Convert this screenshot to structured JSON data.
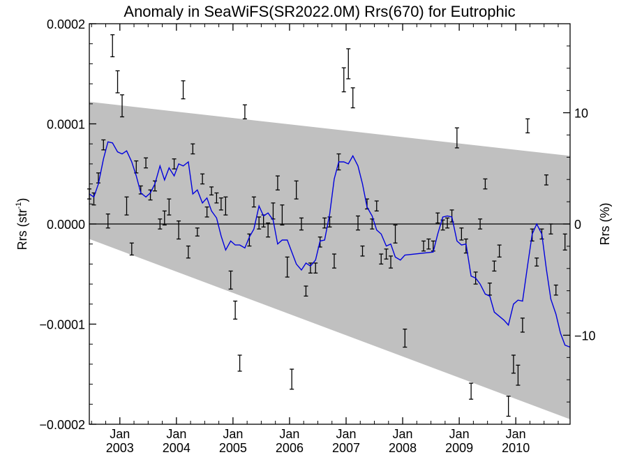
{
  "chart_data": {
    "type": "line",
    "title": "Anomaly in SeaWiFS(SR2022.0M) Rrs(670) for Eutrophic",
    "ylabel": "Rrs (str",
    "ylabel_sup": "-1",
    "ylabel_close": ")",
    "y2label": "Rrs (%)",
    "x_unit": "decimal year",
    "xlim": [
      2002.46,
      2010.96
    ],
    "ylim": [
      -0.0002,
      0.0002
    ],
    "y2lim": [
      -18,
      18
    ],
    "y_ticks": [
      {
        "v": 0.0002,
        "label": "0.0002"
      },
      {
        "v": 0.0001,
        "label": "0.0001"
      },
      {
        "v": 0.0,
        "label": "0.0000"
      },
      {
        "v": -0.0001,
        "label": "−0.0001"
      },
      {
        "v": -0.0002,
        "label": "−0.0002"
      }
    ],
    "y2_ticks": [
      {
        "v": 10,
        "label": "10"
      },
      {
        "v": 0,
        "label": "0"
      },
      {
        "v": -10,
        "label": "−10"
      }
    ],
    "x_ticks": [
      {
        "v": 2003,
        "month": "Jan",
        "year": "2003"
      },
      {
        "v": 2004,
        "month": "Jan",
        "year": "2004"
      },
      {
        "v": 2005,
        "month": "Jan",
        "year": "2005"
      },
      {
        "v": 2006,
        "month": "Jan",
        "year": "2006"
      },
      {
        "v": 2007,
        "month": "Jan",
        "year": "2007"
      },
      {
        "v": 2008,
        "month": "Jan",
        "year": "2008"
      },
      {
        "v": 2009,
        "month": "Jan",
        "year": "2009"
      },
      {
        "v": 2010,
        "month": "Jan",
        "year": "2010"
      }
    ],
    "band": {
      "color": "#c0c0c0",
      "upper": [
        [
          2002.46,
          0.000122
        ],
        [
          2010.96,
          6.8e-05
        ]
      ],
      "lower": [
        [
          2002.46,
          -1.5e-05
        ],
        [
          2010.96,
          -0.000195
        ]
      ]
    },
    "zero_line": true,
    "series": [
      {
        "kind": "smoothed",
        "color": "#0000dd",
        "points": [
          [
            2002.46,
            3e-05
          ],
          [
            2002.54,
            2.7e-05
          ],
          [
            2002.62,
            4e-05
          ],
          [
            2002.71,
            6.5e-05
          ],
          [
            2002.79,
            8.2e-05
          ],
          [
            2002.87,
            8.1e-05
          ],
          [
            2002.96,
            7.2e-05
          ],
          [
            2003.04,
            7e-05
          ],
          [
            2003.12,
            7.3e-05
          ],
          [
            2003.21,
            6.2e-05
          ],
          [
            2003.29,
            4.8e-05
          ],
          [
            2003.37,
            3.1e-05
          ],
          [
            2003.46,
            2.7e-05
          ],
          [
            2003.54,
            3.1e-05
          ],
          [
            2003.62,
            4e-05
          ],
          [
            2003.71,
            5.8e-05
          ],
          [
            2003.79,
            4.4e-05
          ],
          [
            2003.87,
            5.6e-05
          ],
          [
            2003.96,
            4.8e-05
          ],
          [
            2004.04,
            6e-05
          ],
          [
            2004.12,
            5.8e-05
          ],
          [
            2004.21,
            6.2e-05
          ],
          [
            2004.29,
            3e-05
          ],
          [
            2004.37,
            3.4e-05
          ],
          [
            2004.46,
            2.1e-05
          ],
          [
            2004.54,
            2.6e-05
          ],
          [
            2004.62,
            1.3e-05
          ],
          [
            2004.71,
            6e-06
          ],
          [
            2004.79,
            -1.2e-05
          ],
          [
            2004.87,
            -2.6e-05
          ],
          [
            2004.96,
            -1.7e-05
          ],
          [
            2005.04,
            -2.1e-05
          ],
          [
            2005.12,
            -2.1e-05
          ],
          [
            2005.21,
            -2.4e-05
          ],
          [
            2005.29,
            -1.3e-05
          ],
          [
            2005.37,
            -5e-06
          ],
          [
            2005.46,
            1.8e-05
          ],
          [
            2005.54,
            8e-06
          ],
          [
            2005.62,
            1.1e-05
          ],
          [
            2005.71,
            4e-06
          ],
          [
            2005.79,
            -2e-05
          ],
          [
            2005.87,
            -1.6e-05
          ],
          [
            2005.96,
            -1.6e-05
          ],
          [
            2006.04,
            -2.8e-05
          ],
          [
            2006.12,
            -4e-05
          ],
          [
            2006.21,
            -4.6e-05
          ],
          [
            2006.29,
            -3.9e-05
          ],
          [
            2006.37,
            -4.2e-05
          ],
          [
            2006.46,
            -3.6e-05
          ],
          [
            2006.54,
            -1.7e-05
          ],
          [
            2006.62,
            -1.6e-05
          ],
          [
            2006.71,
            1e-05
          ],
          [
            2006.79,
            4.5e-05
          ],
          [
            2006.87,
            6.2e-05
          ],
          [
            2006.96,
            6.2e-05
          ],
          [
            2007.04,
            6e-05
          ],
          [
            2007.12,
            6.8e-05
          ],
          [
            2007.21,
            5.8e-05
          ],
          [
            2007.29,
            4e-05
          ],
          [
            2007.37,
            1.7e-05
          ],
          [
            2007.46,
            8e-06
          ],
          [
            2007.54,
            -6e-06
          ],
          [
            2007.62,
            -1e-05
          ],
          [
            2007.71,
            -2.2e-05
          ],
          [
            2007.79,
            -2e-05
          ],
          [
            2007.87,
            -3.3e-05
          ],
          [
            2007.96,
            -3.6e-05
          ],
          [
            2008.04,
            -3.1e-05
          ],
          [
            2008.54,
            -2.8e-05
          ],
          [
            2008.62,
            -1e-05
          ],
          [
            2008.71,
            7e-06
          ],
          [
            2008.79,
            8e-06
          ],
          [
            2008.87,
            7e-06
          ],
          [
            2008.96,
            -1.7e-05
          ],
          [
            2009.04,
            -2.1e-05
          ],
          [
            2009.12,
            -2e-05
          ],
          [
            2009.21,
            -5.2e-05
          ],
          [
            2009.29,
            -5.4e-05
          ],
          [
            2009.37,
            -6e-05
          ],
          [
            2009.46,
            -7e-05
          ],
          [
            2009.54,
            -7.2e-05
          ],
          [
            2009.62,
            -8.8e-05
          ],
          [
            2009.79,
            -9.6e-05
          ],
          [
            2009.87,
            -0.000101
          ],
          [
            2009.96,
            -8e-05
          ],
          [
            2010.04,
            -7.6e-05
          ],
          [
            2010.12,
            -7.7e-05
          ],
          [
            2010.21,
            -4.1e-05
          ],
          [
            2010.29,
            -1e-05
          ],
          [
            2010.37,
            0.0
          ],
          [
            2010.46,
            -1e-05
          ],
          [
            2010.54,
            -4.5e-05
          ],
          [
            2010.62,
            -7.5e-05
          ],
          [
            2010.71,
            -9e-05
          ],
          [
            2010.79,
            -0.000109
          ],
          [
            2010.87,
            -0.000121
          ],
          [
            2010.96,
            -0.000123
          ]
        ]
      }
    ],
    "error_bars": {
      "color": "#000000",
      "points": [
        [
          2002.46,
          3e-05,
          5e-06
        ],
        [
          2002.54,
          2.5e-05,
          6e-06
        ],
        [
          2002.62,
          4.6e-05,
          5e-06
        ],
        [
          2002.71,
          7.9e-05,
          5e-06
        ],
        [
          2002.79,
          3e-06,
          7e-06
        ],
        [
          2002.87,
          0.000178,
          1.1e-05
        ],
        [
          2002.96,
          0.000142,
          1.1e-05
        ],
        [
          2003.04,
          0.000118,
          1.1e-05
        ],
        [
          2003.12,
          1.8e-05,
          9e-06
        ],
        [
          2003.21,
          -2.5e-05,
          6e-06
        ],
        [
          2003.29,
          5.7e-05,
          6e-06
        ],
        [
          2003.37,
          3.4e-05,
          4e-06
        ],
        [
          2003.46,
          6.1e-05,
          5e-06
        ],
        [
          2003.54,
          2.9e-05,
          5e-06
        ],
        [
          2003.62,
          3.8e-05,
          5e-06
        ],
        [
          2003.71,
          0.0,
          5e-06
        ],
        [
          2003.79,
          6e-06,
          7e-06
        ],
        [
          2003.87,
          1.7e-05,
          8e-06
        ],
        [
          2003.96,
          6e-05,
          5e-06
        ],
        [
          2004.04,
          -6e-06,
          9e-06
        ],
        [
          2004.12,
          0.000134,
          9e-06
        ],
        [
          2004.21,
          -2.8e-05,
          6e-06
        ],
        [
          2004.29,
          7.5e-05,
          5e-06
        ],
        [
          2004.37,
          -8e-06,
          4e-06
        ],
        [
          2004.46,
          4.5e-05,
          5e-06
        ],
        [
          2004.54,
          1.2e-05,
          5e-06
        ],
        [
          2004.62,
          3.3e-05,
          4e-06
        ],
        [
          2004.71,
          2.6e-05,
          5e-06
        ],
        [
          2004.79,
          2e-05,
          6e-06
        ],
        [
          2004.87,
          1.8e-05,
          9e-06
        ],
        [
          2004.96,
          -5.6e-05,
          9e-06
        ],
        [
          2005.04,
          -8.6e-05,
          9e-06
        ],
        [
          2005.12,
          -0.000139,
          8e-06
        ],
        [
          2005.21,
          0.000112,
          7e-06
        ],
        [
          2005.29,
          -1.6e-05,
          6e-06
        ],
        [
          2005.37,
          2.2e-05,
          5e-06
        ],
        [
          2005.46,
          1e-06,
          6e-06
        ],
        [
          2005.54,
          3e-06,
          6e-06
        ],
        [
          2005.62,
          -6e-06,
          7e-06
        ],
        [
          2005.71,
          1.3e-05,
          8e-06
        ],
        [
          2005.79,
          4.1e-05,
          7e-06
        ],
        [
          2005.87,
          9e-06,
          1e-05
        ],
        [
          2005.96,
          -4.3e-05,
          1e-05
        ],
        [
          2006.04,
          -0.000155,
          1e-05
        ],
        [
          2006.12,
          3.4e-05,
          9e-06
        ],
        [
          2006.21,
          0.0,
          6e-06
        ],
        [
          2006.29,
          -6.7e-05,
          5e-06
        ],
        [
          2006.37,
          -4.4e-05,
          5e-06
        ],
        [
          2006.46,
          -4.4e-05,
          5e-06
        ],
        [
          2006.54,
          -1.8e-05,
          5e-06
        ],
        [
          2006.62,
          1e-06,
          5e-06
        ],
        [
          2006.71,
          2e-06,
          5e-06
        ],
        [
          2006.79,
          -3.7e-05,
          7e-06
        ],
        [
          2006.87,
          6.2e-05,
          8e-06
        ],
        [
          2006.96,
          0.000144,
          1.2e-05
        ],
        [
          2007.04,
          0.00016,
          1.5e-05
        ],
        [
          2007.12,
          0.000126,
          1e-05
        ],
        [
          2007.21,
          1e-06,
          7e-06
        ],
        [
          2007.29,
          -2.7e-05,
          5e-06
        ],
        [
          2007.37,
          2e-05,
          5e-06
        ],
        [
          2007.46,
          0.0,
          5e-06
        ],
        [
          2007.54,
          1.8e-05,
          5e-06
        ],
        [
          2007.62,
          -3.5e-05,
          5e-06
        ],
        [
          2007.71,
          -3e-05,
          5e-06
        ],
        [
          2007.79,
          -3.8e-05,
          6e-06
        ],
        [
          2007.87,
          -1e-05,
          9e-06
        ],
        [
          2008.04,
          -0.000114,
          9e-06
        ],
        [
          2008.37,
          -2.2e-05,
          5e-06
        ],
        [
          2008.46,
          -2e-05,
          5e-06
        ],
        [
          2008.54,
          -2.2e-05,
          5e-06
        ],
        [
          2008.62,
          6e-06,
          5e-06
        ],
        [
          2008.71,
          -1e-06,
          5e-06
        ],
        [
          2008.79,
          1e-06,
          5e-06
        ],
        [
          2008.87,
          8e-06,
          6e-06
        ],
        [
          2008.96,
          8.6e-05,
          1e-05
        ],
        [
          2009.04,
          -1e-05,
          6e-06
        ],
        [
          2009.12,
          -2.2e-05,
          7e-06
        ],
        [
          2009.21,
          -0.000167,
          8e-06
        ],
        [
          2009.29,
          -5.4e-05,
          6e-06
        ],
        [
          2009.37,
          0.0,
          5e-06
        ],
        [
          2009.46,
          4e-05,
          5e-06
        ],
        [
          2009.54,
          -6.5e-05,
          6e-06
        ],
        [
          2009.62,
          -4.2e-05,
          5e-06
        ],
        [
          2009.71,
          -2.7e-05,
          6e-06
        ],
        [
          2009.87,
          -0.000182,
          1e-05
        ],
        [
          2009.96,
          -0.00014,
          9e-06
        ],
        [
          2010.04,
          -0.000151,
          1e-05
        ],
        [
          2010.12,
          -0.000101,
          7e-06
        ],
        [
          2010.21,
          9.8e-05,
          7e-06
        ],
        [
          2010.29,
          -1.1e-05,
          6e-06
        ],
        [
          2010.37,
          -3.8e-05,
          4e-06
        ],
        [
          2010.46,
          -1e-05,
          5e-06
        ],
        [
          2010.54,
          4.4e-05,
          5e-06
        ],
        [
          2010.62,
          -5e-06,
          5e-06
        ],
        [
          2010.71,
          -6.6e-05,
          5e-06
        ],
        [
          2010.87,
          -1.8e-05,
          8e-06
        ]
      ]
    },
    "grid": false,
    "legend": "none"
  }
}
